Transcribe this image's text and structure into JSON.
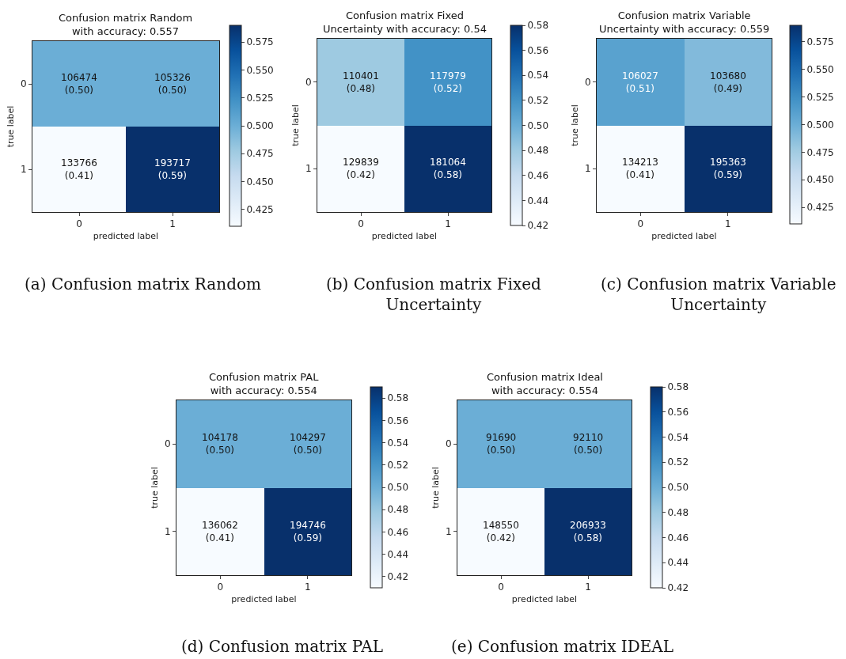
{
  "chart_data": [
    {
      "type": "heatmap",
      "title": "Confusion matrix Random\nwith accuracy: 0.557",
      "xlabel": "predicted label",
      "ylabel": "true label",
      "categories": [
        "0",
        "1"
      ],
      "y_categories": [
        "0",
        "1"
      ],
      "cells": [
        [
          0.5,
          0.5
        ],
        [
          0.41,
          0.59
        ]
      ],
      "cell_labels": [
        [
          "106474\n(0.50)",
          "105326\n(0.50)"
        ],
        [
          "133766\n(0.41)",
          "193717\n(0.59)"
        ]
      ],
      "clim": [
        0.41,
        0.59
      ],
      "cticks": [
        0.425,
        {
          "value": 0.45,
          "label": "0.450"
        },
        0.475,
        {
          "value": 0.5,
          "label": "0.500"
        },
        0.525,
        {
          "value": 0.55,
          "label": "0.550"
        },
        0.575
      ],
      "annotations": [
        "(a) Confusion matrix Random"
      ]
    },
    {
      "type": "heatmap",
      "title": "Confusion matrix Fixed\nUncertainty with accuracy: 0.54",
      "xlabel": "predicted label",
      "ylabel": "true label",
      "categories": [
        "0",
        "1"
      ],
      "y_categories": [
        "0",
        "1"
      ],
      "cells": [
        [
          0.48,
          0.52
        ],
        [
          0.42,
          0.58
        ]
      ],
      "cell_labels": [
        [
          "110401\n(0.48)",
          "117979\n(0.52)"
        ],
        [
          "129839\n(0.42)",
          "181064\n(0.58)"
        ]
      ],
      "clim": [
        0.42,
        0.58
      ],
      "cticks": [
        0.42,
        0.44,
        0.46,
        0.48,
        {
          "value": 0.5,
          "label": "0.50"
        },
        0.52,
        0.54,
        0.56,
        0.58
      ],
      "annotations": [
        "(b) Confusion matrix Fixed\nUncertainty"
      ]
    },
    {
      "type": "heatmap",
      "title": "Confusion matrix Variable\nUncertainty with accuracy: 0.559",
      "xlabel": "predicted label",
      "ylabel": "true label",
      "categories": [
        "0",
        "1"
      ],
      "y_categories": [
        "0",
        "1"
      ],
      "cells": [
        [
          0.51,
          0.49
        ],
        [
          0.41,
          0.59
        ]
      ],
      "cell_labels": [
        [
          "106027\n(0.51)",
          "103680\n(0.49)"
        ],
        [
          "134213\n(0.41)",
          "195363\n(0.59)"
        ]
      ],
      "clim": [
        0.41,
        0.59
      ],
      "cticks": [
        0.425,
        {
          "value": 0.45,
          "label": "0.450"
        },
        0.475,
        {
          "value": 0.5,
          "label": "0.500"
        },
        0.525,
        {
          "value": 0.55,
          "label": "0.550"
        },
        0.575
      ],
      "annotations": [
        "(c) Confusion matrix Variable\nUncertainty"
      ]
    },
    {
      "type": "heatmap",
      "title": "Confusion matrix PAL\nwith accuracy: 0.554",
      "xlabel": "predicted label",
      "ylabel": "true label",
      "categories": [
        "0",
        "1"
      ],
      "y_categories": [
        "0",
        "1"
      ],
      "cells": [
        [
          0.5,
          0.5
        ],
        [
          0.41,
          0.59
        ]
      ],
      "cell_labels": [
        [
          "104178\n(0.50)",
          "104297\n(0.50)"
        ],
        [
          "136062\n(0.41)",
          "194746\n(0.59)"
        ]
      ],
      "clim": [
        0.41,
        0.59
      ],
      "cticks": [
        0.42,
        0.44,
        0.46,
        0.48,
        {
          "value": 0.5,
          "label": "0.50"
        },
        0.52,
        0.54,
        0.56,
        0.58
      ],
      "annotations": [
        "(d) Confusion matrix PAL"
      ]
    },
    {
      "type": "heatmap",
      "title": "Confusion matrix Ideal\nwith accuracy: 0.554",
      "xlabel": "predicted label",
      "ylabel": "true label",
      "categories": [
        "0",
        "1"
      ],
      "y_categories": [
        "0",
        "1"
      ],
      "cells": [
        [
          0.5,
          0.5
        ],
        [
          0.42,
          0.58
        ]
      ],
      "cell_labels": [
        [
          "91690\n(0.50)",
          "92110\n(0.50)"
        ],
        [
          "148550\n(0.42)",
          "206933\n(0.58)"
        ]
      ],
      "clim": [
        0.42,
        0.58
      ],
      "cticks": [
        0.42,
        0.44,
        0.46,
        0.48,
        {
          "value": 0.5,
          "label": "0.50"
        },
        0.52,
        0.54,
        0.56,
        0.58
      ],
      "annotations": [
        "(e) Confusion matrix IDEAL"
      ]
    }
  ]
}
